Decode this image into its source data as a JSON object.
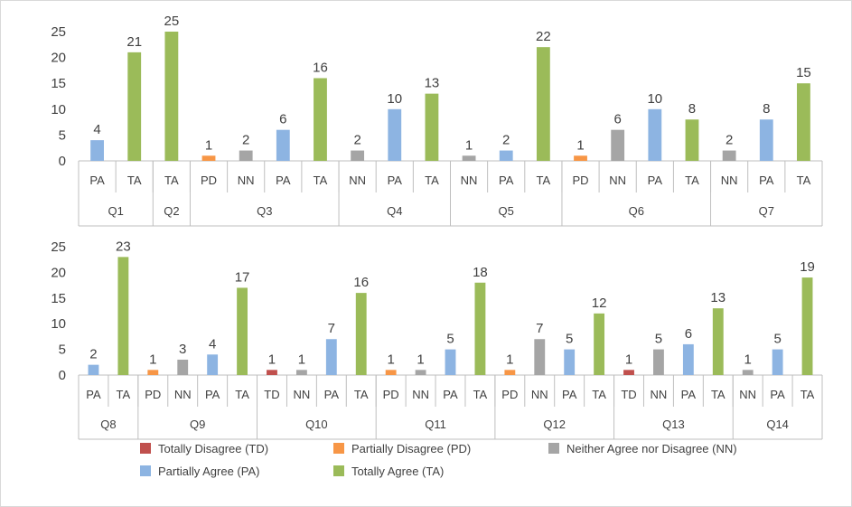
{
  "colors": {
    "TD": "#c0504d",
    "PD": "#f79646",
    "NN": "#a5a5a5",
    "PA": "#8db4e2",
    "TA": "#9bbb59",
    "axis": "#bfbfbf",
    "text": "#404040"
  },
  "chart_data": {
    "type": "bar",
    "y_ticks": [
      0,
      5,
      10,
      15,
      20,
      25
    ],
    "ylim": [
      0,
      25
    ],
    "grid": false,
    "legend_position": "bottom",
    "legend": [
      {
        "code": "TD",
        "label": "Totally Disagree (TD)"
      },
      {
        "code": "PD",
        "label": "Partially Disagree (PD)"
      },
      {
        "code": "NN",
        "label": "Neither Agree nor Disagree (NN)"
      },
      {
        "code": "PA",
        "label": "Partially Agree (PA)"
      },
      {
        "code": "TA",
        "label": "Totally Agree (TA)"
      }
    ],
    "panels": [
      {
        "groups": [
          {
            "question": "Q1",
            "bars": [
              {
                "code": "PA",
                "value": 4
              },
              {
                "code": "TA",
                "value": 21
              }
            ]
          },
          {
            "question": "Q2",
            "bars": [
              {
                "code": "TA",
                "value": 25
              }
            ]
          },
          {
            "question": "Q3",
            "bars": [
              {
                "code": "PD",
                "value": 1
              },
              {
                "code": "NN",
                "value": 2
              },
              {
                "code": "PA",
                "value": 6
              },
              {
                "code": "TA",
                "value": 16
              }
            ]
          },
          {
            "question": "Q4",
            "bars": [
              {
                "code": "NN",
                "value": 2
              },
              {
                "code": "PA",
                "value": 10
              },
              {
                "code": "TA",
                "value": 13
              }
            ]
          },
          {
            "question": "Q5",
            "bars": [
              {
                "code": "NN",
                "value": 1
              },
              {
                "code": "PA",
                "value": 2
              },
              {
                "code": "TA",
                "value": 22
              }
            ]
          },
          {
            "question": "Q6",
            "bars": [
              {
                "code": "PD",
                "value": 1
              },
              {
                "code": "NN",
                "value": 6
              },
              {
                "code": "PA",
                "value": 10
              },
              {
                "code": "TA",
                "value": 8
              }
            ]
          },
          {
            "question": "Q7",
            "bars": [
              {
                "code": "NN",
                "value": 2
              },
              {
                "code": "PA",
                "value": 8
              },
              {
                "code": "TA",
                "value": 15
              }
            ]
          }
        ]
      },
      {
        "groups": [
          {
            "question": "Q8",
            "bars": [
              {
                "code": "PA",
                "value": 2
              },
              {
                "code": "TA",
                "value": 23
              }
            ]
          },
          {
            "question": "Q9",
            "bars": [
              {
                "code": "PD",
                "value": 1
              },
              {
                "code": "NN",
                "value": 3
              },
              {
                "code": "PA",
                "value": 4
              },
              {
                "code": "TA",
                "value": 17
              }
            ]
          },
          {
            "question": "Q10",
            "bars": [
              {
                "code": "TD",
                "value": 1
              },
              {
                "code": "NN",
                "value": 1
              },
              {
                "code": "PA",
                "value": 7
              },
              {
                "code": "TA",
                "value": 16
              }
            ]
          },
          {
            "question": "Q11",
            "bars": [
              {
                "code": "PD",
                "value": 1
              },
              {
                "code": "NN",
                "value": 1
              },
              {
                "code": "PA",
                "value": 5
              },
              {
                "code": "TA",
                "value": 18
              }
            ]
          },
          {
            "question": "Q12",
            "bars": [
              {
                "code": "PD",
                "value": 1
              },
              {
                "code": "NN",
                "value": 7
              },
              {
                "code": "PA",
                "value": 5
              },
              {
                "code": "TA",
                "value": 12
              }
            ]
          },
          {
            "question": "Q13",
            "bars": [
              {
                "code": "TD",
                "value": 1
              },
              {
                "code": "NN",
                "value": 5
              },
              {
                "code": "PA",
                "value": 6
              },
              {
                "code": "TA",
                "value": 13
              }
            ]
          },
          {
            "question": "Q14",
            "bars": [
              {
                "code": "NN",
                "value": 1
              },
              {
                "code": "PA",
                "value": 5
              },
              {
                "code": "TA",
                "value": 19
              }
            ]
          }
        ]
      }
    ]
  }
}
